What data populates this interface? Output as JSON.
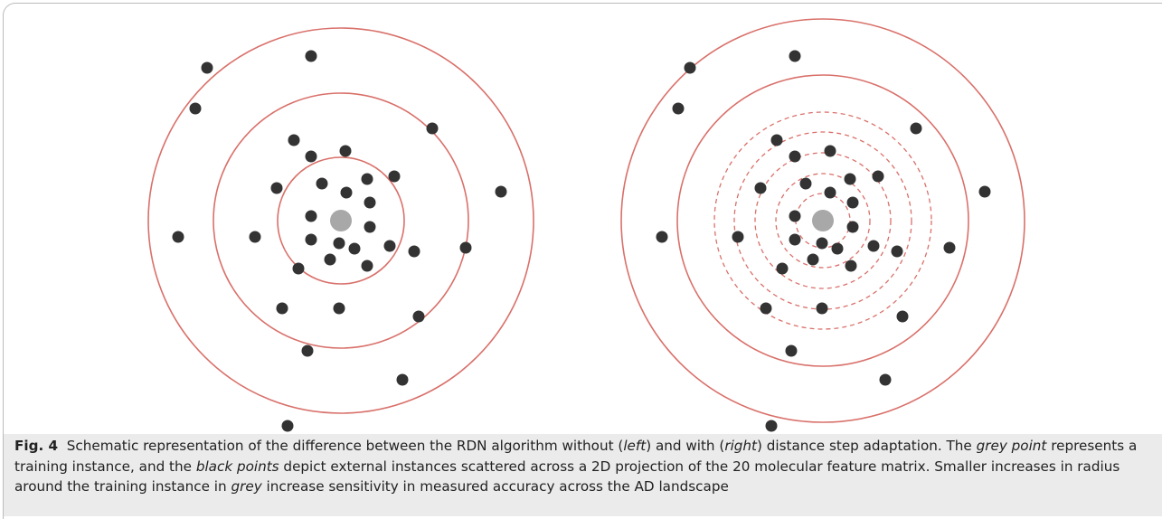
{
  "caption": {
    "label": "Fig. 4",
    "parts": [
      "Schematic representation of the difference between the RDN algorithm without (",
      "left",
      ") and with (",
      "right",
      ") distance step adaptation. The ",
      "grey point",
      " represents a training instance, and the ",
      "black points",
      " depict external instances scattered across a 2D projection of the 20 molecular feature matrix. Smaller increases in radius around the training instance in ",
      "grey",
      " increase sensitivity in measured accuracy across the AD landscape"
    ]
  }
}
